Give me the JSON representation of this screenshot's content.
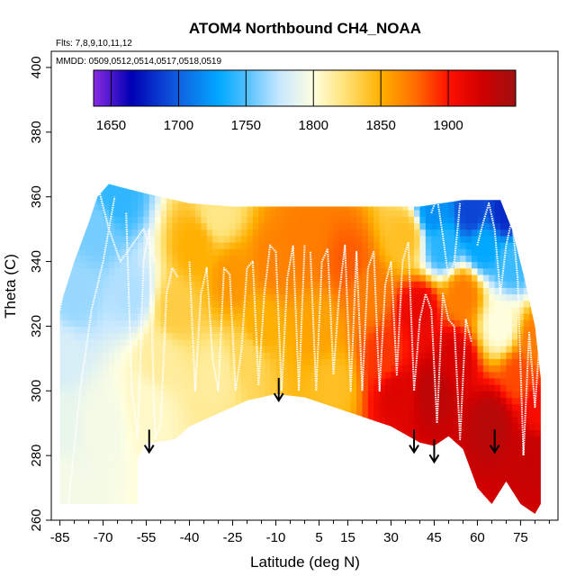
{
  "chart_data": {
    "type": "heatmap",
    "title": "ATOM4 Northbound CH4_NOAA",
    "flights_note": "Flts: 7,8,9,10,11,12",
    "dates_note": "MMDD: 0509,0512,0514,0517,0518,0519",
    "xlabel": "Latitude (deg N)",
    "ylabel": "Theta (C)",
    "xlim": [
      -88,
      88
    ],
    "ylim": [
      260,
      405
    ],
    "x_ticks": [
      -85,
      -70,
      -55,
      -40,
      -25,
      -10,
      5,
      15,
      30,
      45,
      60,
      75
    ],
    "y_ticks": [
      260,
      280,
      300,
      320,
      340,
      360,
      380,
      400
    ],
    "colorbar": {
      "min": 1637,
      "max": 1950,
      "ticks": [
        1650,
        1700,
        1750,
        1800,
        1850,
        1900
      ],
      "stops": [
        {
          "value": 1637,
          "color": "#8a2be2"
        },
        {
          "value": 1665,
          "color": "#0000b4"
        },
        {
          "value": 1700,
          "color": "#1060e0"
        },
        {
          "value": 1730,
          "color": "#00a8ff"
        },
        {
          "value": 1750,
          "color": "#50c0ff"
        },
        {
          "value": 1775,
          "color": "#c8e8ff"
        },
        {
          "value": 1800,
          "color": "#ffffe0"
        },
        {
          "value": 1825,
          "color": "#ffe070"
        },
        {
          "value": 1850,
          "color": "#ffb000"
        },
        {
          "value": 1875,
          "color": "#ff7000"
        },
        {
          "value": 1900,
          "color": "#ff1000"
        },
        {
          "value": 1925,
          "color": "#d00000"
        },
        {
          "value": 1950,
          "color": "#a01010"
        }
      ]
    },
    "domain_bottom": [
      [
        -85,
        265
      ],
      [
        -58,
        265
      ],
      [
        -58,
        279
      ],
      [
        -55,
        284
      ],
      [
        -52,
        284
      ],
      [
        -45,
        285
      ],
      [
        -40,
        289
      ],
      [
        -30,
        293
      ],
      [
        -20,
        297
      ],
      [
        -10,
        299
      ],
      [
        0,
        298
      ],
      [
        10,
        295
      ],
      [
        20,
        292
      ],
      [
        30,
        289
      ],
      [
        40,
        284
      ],
      [
        45,
        283
      ],
      [
        50,
        286
      ],
      [
        55,
        282
      ],
      [
        60,
        270
      ],
      [
        65,
        265
      ],
      [
        70,
        272
      ],
      [
        75,
        265
      ],
      [
        80,
        262
      ],
      [
        82,
        265
      ]
    ],
    "domain_top": [
      [
        -85,
        326
      ],
      [
        -80,
        340
      ],
      [
        -75,
        352
      ],
      [
        -72,
        360
      ],
      [
        -68,
        364
      ],
      [
        -64,
        363
      ],
      [
        -55,
        361
      ],
      [
        -40,
        358
      ],
      [
        -25,
        357
      ],
      [
        -10,
        357
      ],
      [
        0,
        357
      ],
      [
        20,
        357
      ],
      [
        40,
        357
      ],
      [
        55,
        359
      ],
      [
        68,
        359
      ],
      [
        72,
        350
      ],
      [
        76,
        336
      ],
      [
        80,
        320
      ],
      [
        82,
        304
      ]
    ],
    "anomaly_points": [
      {
        "lat": -85,
        "theta": 270,
        "ch4": 1795
      },
      {
        "lat": -85,
        "theta": 290,
        "ch4": 1790
      },
      {
        "lat": -85,
        "theta": 310,
        "ch4": 1782
      },
      {
        "lat": -80,
        "theta": 330,
        "ch4": 1765
      },
      {
        "lat": -72,
        "theta": 350,
        "ch4": 1758
      },
      {
        "lat": -65,
        "theta": 360,
        "ch4": 1742
      },
      {
        "lat": -60,
        "theta": 330,
        "ch4": 1770
      },
      {
        "lat": -55,
        "theta": 295,
        "ch4": 1805
      },
      {
        "lat": -50,
        "theta": 310,
        "ch4": 1815
      },
      {
        "lat": -45,
        "theta": 325,
        "ch4": 1835
      },
      {
        "lat": -38,
        "theta": 345,
        "ch4": 1850
      },
      {
        "lat": -30,
        "theta": 355,
        "ch4": 1820
      },
      {
        "lat": -25,
        "theta": 335,
        "ch4": 1860
      },
      {
        "lat": -20,
        "theta": 310,
        "ch4": 1830
      },
      {
        "lat": -15,
        "theta": 320,
        "ch4": 1850
      },
      {
        "lat": -10,
        "theta": 340,
        "ch4": 1868
      },
      {
        "lat": 0,
        "theta": 345,
        "ch4": 1870
      },
      {
        "lat": 5,
        "theta": 320,
        "ch4": 1855
      },
      {
        "lat": 10,
        "theta": 302,
        "ch4": 1842
      },
      {
        "lat": 15,
        "theta": 340,
        "ch4": 1880
      },
      {
        "lat": 22,
        "theta": 330,
        "ch4": 1870
      },
      {
        "lat": 28,
        "theta": 310,
        "ch4": 1890
      },
      {
        "lat": 32,
        "theta": 300,
        "ch4": 1918
      },
      {
        "lat": 35,
        "theta": 348,
        "ch4": 1842
      },
      {
        "lat": 40,
        "theta": 325,
        "ch4": 1912
      },
      {
        "lat": 45,
        "theta": 355,
        "ch4": 1720
      },
      {
        "lat": 48,
        "theta": 345,
        "ch4": 1740
      },
      {
        "lat": 45,
        "theta": 300,
        "ch4": 1935
      },
      {
        "lat": 52,
        "theta": 310,
        "ch4": 1922
      },
      {
        "lat": 55,
        "theta": 330,
        "ch4": 1870
      },
      {
        "lat": 58,
        "theta": 355,
        "ch4": 1690
      },
      {
        "lat": 62,
        "theta": 345,
        "ch4": 1730
      },
      {
        "lat": 65,
        "theta": 290,
        "ch4": 1938
      },
      {
        "lat": 68,
        "theta": 320,
        "ch4": 1800
      },
      {
        "lat": 70,
        "theta": 355,
        "ch4": 1680
      },
      {
        "lat": 72,
        "theta": 340,
        "ch4": 1745
      },
      {
        "lat": 75,
        "theta": 305,
        "ch4": 1885
      },
      {
        "lat": 78,
        "theta": 280,
        "ch4": 1930
      },
      {
        "lat": 80,
        "theta": 315,
        "ch4": 1870
      },
      {
        "lat": 82,
        "theta": 295,
        "ch4": 1905
      },
      {
        "lat": -70,
        "theta": 290,
        "ch4": 1795
      },
      {
        "lat": -30,
        "theta": 305,
        "ch4": 1815
      }
    ],
    "flight_tracks": [
      [
        [
          -85,
          325
        ],
        [
          -82,
          340
        ],
        [
          -79,
          350
        ],
        [
          -76,
          362
        ],
        [
          -72,
          364
        ],
        [
          -68,
          350
        ],
        [
          -64,
          340
        ],
        [
          -60,
          345
        ],
        [
          -56,
          350
        ],
        [
          -52,
          340
        ]
      ],
      [
        [
          -82,
          265
        ],
        [
          -78,
          300
        ],
        [
          -74,
          325
        ],
        [
          -70,
          340
        ],
        [
          -66,
          360
        ]
      ],
      [
        [
          -62,
          355
        ],
        [
          -60,
          300
        ],
        [
          -58,
          285
        ],
        [
          -56,
          340
        ],
        [
          -54,
          350
        ],
        [
          -52,
          285
        ],
        [
          -50,
          290
        ],
        [
          -48,
          330
        ],
        [
          -46,
          338
        ],
        [
          -44,
          335
        ]
      ],
      [
        [
          -40,
          340
        ],
        [
          -38,
          300
        ],
        [
          -36,
          330
        ],
        [
          -34,
          338
        ],
        [
          -32,
          310
        ],
        [
          -30,
          300
        ],
        [
          -28,
          338
        ],
        [
          -26,
          336
        ],
        [
          -24,
          300
        ],
        [
          -22,
          312
        ],
        [
          -20,
          338
        ],
        [
          -18,
          340
        ],
        [
          -16,
          302
        ],
        [
          -14,
          330
        ],
        [
          -12,
          345
        ],
        [
          -10,
          343
        ],
        [
          -8,
          300
        ],
        [
          -6,
          335
        ],
        [
          -4,
          345
        ],
        [
          -2,
          300
        ],
        [
          0,
          345
        ]
      ],
      [
        [
          2,
          343
        ],
        [
          4,
          300
        ],
        [
          6,
          340
        ],
        [
          8,
          344
        ],
        [
          10,
          305
        ],
        [
          12,
          330
        ],
        [
          14,
          345
        ],
        [
          16,
          300
        ],
        [
          18,
          343
        ],
        [
          20,
          300
        ],
        [
          22,
          338
        ],
        [
          24,
          343
        ],
        [
          26,
          300
        ],
        [
          28,
          333
        ],
        [
          30,
          340
        ],
        [
          32,
          305
        ],
        [
          34,
          340
        ],
        [
          36,
          346
        ],
        [
          38,
          300
        ],
        [
          40,
          322
        ]
      ],
      [
        [
          40,
          322
        ],
        [
          42,
          330
        ],
        [
          44,
          325
        ],
        [
          46,
          290
        ],
        [
          48,
          330
        ],
        [
          50,
          322
        ],
        [
          52,
          320
        ],
        [
          54,
          285
        ],
        [
          56,
          322
        ],
        [
          58,
          315
        ]
      ],
      [
        [
          44,
          355
        ],
        [
          46,
          360
        ],
        [
          48,
          348
        ],
        [
          50,
          335
        ],
        [
          52,
          340
        ],
        [
          54,
          358
        ]
      ],
      [
        [
          60,
          345
        ],
        [
          62,
          352
        ],
        [
          64,
          358
        ],
        [
          66,
          350
        ],
        [
          68,
          330
        ],
        [
          70,
          345
        ],
        [
          72,
          353
        ],
        [
          74,
          335
        ],
        [
          76,
          280
        ],
        [
          78,
          318
        ],
        [
          80,
          295
        ],
        [
          82,
          320
        ]
      ]
    ],
    "arrows": [
      {
        "lat": -54,
        "theta_top": 288,
        "theta_tip": 281
      },
      {
        "lat": -9,
        "theta_top": 304,
        "theta_tip": 297
      },
      {
        "lat": 38,
        "theta_top": 288,
        "theta_tip": 281
      },
      {
        "lat": 45,
        "theta_top": 285,
        "theta_tip": 278
      },
      {
        "lat": 66,
        "theta_top": 288,
        "theta_tip": 281
      }
    ]
  }
}
